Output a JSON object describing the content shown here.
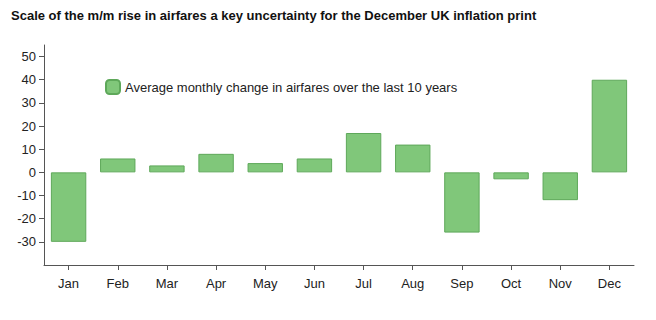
{
  "chart_data": {
    "type": "bar",
    "title": "Scale of the m/m rise in airfares a key uncertainty for the December UK inflation print",
    "categories": [
      "Jan",
      "Feb",
      "Mar",
      "Apr",
      "May",
      "Jun",
      "Jul",
      "Aug",
      "Sep",
      "Oct",
      "Nov",
      "Dec"
    ],
    "series": [
      {
        "name": "Average monthly change in airfares over the last 10 years",
        "color": "#80c77a",
        "values": [
          -30,
          6,
          3,
          8,
          4,
          6,
          17,
          12,
          -26,
          -3,
          -12,
          40
        ]
      }
    ],
    "ylim": [
      -40,
      55
    ],
    "yticks": [
      -30,
      -20,
      -10,
      0,
      10,
      20,
      30,
      40,
      50
    ],
    "grid": false,
    "legend": "upper left"
  }
}
